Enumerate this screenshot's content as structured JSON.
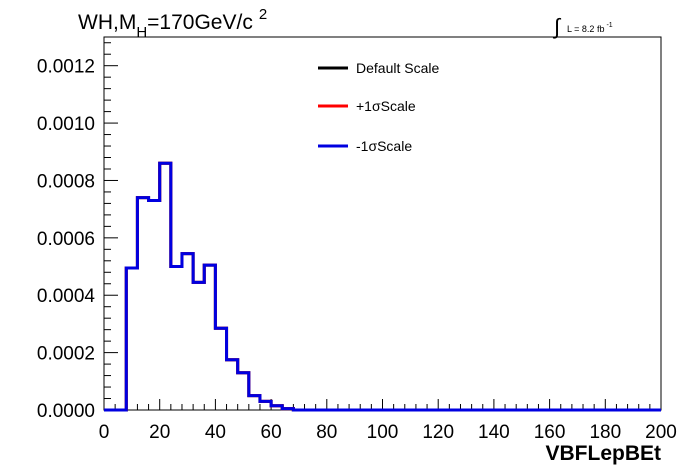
{
  "chart_data": {
    "type": "line",
    "title_parts": [
      "WH,M",
      "H",
      "=170GeV/c",
      "2"
    ],
    "lumi_label": "L = 8.2 fb",
    "lumi_exponent": "-1",
    "xlabel": "VBFLepBEt",
    "ylabel": "",
    "xlim": [
      0,
      200
    ],
    "ylim": [
      0,
      0.0013
    ],
    "x_ticks": [
      "0",
      "20",
      "40",
      "60",
      "80",
      "100",
      "120",
      "140",
      "160",
      "180",
      "200"
    ],
    "y_ticks": [
      "0.0000",
      "0.0002",
      "0.0004",
      "0.0006",
      "0.0008",
      "0.0010",
      "0.0012"
    ],
    "bin_width": 4,
    "bin_edges_start": 0,
    "legend_position": "top-center",
    "series": [
      {
        "name": "Default Scale",
        "color": "#000000",
        "values": [
          0,
          0,
          0.000495,
          0.00074,
          0.00073,
          0.00086,
          0.0005,
          0.000545,
          0.000445,
          0.000505,
          0.000285,
          0.000175,
          0.00013,
          5e-05,
          3e-05,
          1.5e-05,
          5e-06,
          0,
          0,
          0,
          0,
          0,
          0,
          0,
          0,
          0,
          0,
          0,
          0,
          0,
          0,
          0,
          0,
          0,
          0,
          0,
          0,
          0,
          0,
          0,
          0,
          0,
          0,
          0,
          0,
          0,
          0,
          0,
          0,
          0
        ]
      },
      {
        "name": "+1σScale",
        "color": "#ff0000",
        "values": [
          0,
          0,
          0.000495,
          0.00074,
          0.00073,
          0.00086,
          0.0005,
          0.000545,
          0.000445,
          0.000505,
          0.000285,
          0.000175,
          0.00013,
          5e-05,
          3e-05,
          1.5e-05,
          5e-06,
          0,
          0,
          0,
          0,
          0,
          0,
          0,
          0,
          0,
          0,
          0,
          0,
          0,
          0,
          0,
          0,
          0,
          0,
          0,
          0,
          0,
          0,
          0,
          0,
          0,
          0,
          0,
          0,
          0,
          0,
          0,
          0,
          0
        ]
      },
      {
        "name": "-1σScale",
        "color": "#0000e0",
        "values": [
          0,
          0,
          0.000495,
          0.00074,
          0.00073,
          0.00086,
          0.0005,
          0.000545,
          0.000445,
          0.000505,
          0.000285,
          0.000175,
          0.00013,
          5e-05,
          3e-05,
          1.5e-05,
          5e-06,
          0,
          0,
          0,
          0,
          0,
          0,
          0,
          0,
          0,
          0,
          0,
          0,
          0,
          0,
          0,
          0,
          0,
          0,
          0,
          0,
          0,
          0,
          0,
          0,
          0,
          0,
          0,
          0,
          0,
          0,
          0,
          0,
          0
        ]
      }
    ]
  }
}
